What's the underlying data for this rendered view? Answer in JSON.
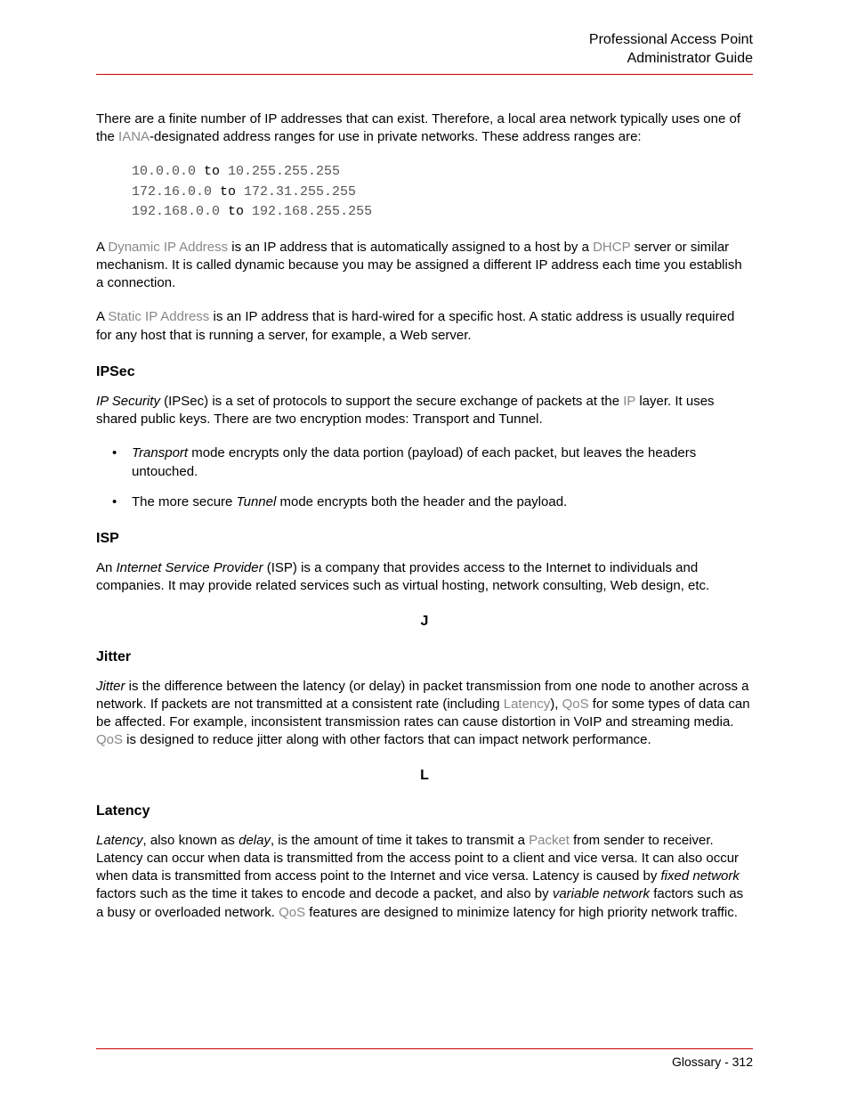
{
  "header": {
    "line1": "Professional Access Point",
    "line2": "Administrator Guide"
  },
  "intro": {
    "t1": "There are a finite number of IP addresses that can exist. Therefore, a local area network typically uses one of the ",
    "link1": "IANA",
    "t2": "-designated address ranges for use in private networks. These address ranges are:"
  },
  "ranges": {
    "r1a": "10.0.0.0",
    "r1m": " to ",
    "r1b": "10.255.255.255",
    "r2a": "172.16.0.0",
    "r2m": " to ",
    "r2b": "172.31.255.255",
    "r3a": "192.168.0.0",
    "r3m": " to ",
    "r3b": "192.168.255.255"
  },
  "dyn": {
    "t1": "A ",
    "link1": "Dynamic IP Address",
    "t2": " is an IP address that is automatically assigned to a host by a ",
    "link2": "DHCP",
    "t3": " server or similar mechanism. It is called dynamic because you may be assigned a different IP address each time you establish a connection."
  },
  "stat": {
    "t1": "A ",
    "link1": "Static IP Address",
    "t2": " is an IP address that is hard-wired for a specific host. A static address is usually required for any host that is running a server, for example, a Web server."
  },
  "ipsec": {
    "heading": "IPSec",
    "p_i1": "IP Security",
    "p_t1": " (IPSec) is a set of protocols to support the secure exchange of packets at the ",
    "p_link1": "IP",
    "p_t2": " layer. It uses shared public keys. There are two encryption modes: Transport and Tunnel.",
    "b1_i": "Transport",
    "b1_t": " mode encrypts only the data portion (payload) of each packet, but leaves the headers untouched.",
    "b2_t1": "The more secure ",
    "b2_i": "Tunnel",
    "b2_t2": " mode encrypts both the header and the payload."
  },
  "isp": {
    "heading": "ISP",
    "p_t1": "An ",
    "p_i1": "Internet Service Provider",
    "p_t2": " (ISP) is a company that provides access to the Internet to individuals and companies. It may provide related services such as virtual hosting, network consulting, Web design, etc."
  },
  "letterJ": "J",
  "jitter": {
    "heading": "Jitter",
    "p_i1": "Jitter",
    "p_t1": " is the difference between the latency (or delay) in packet transmission from one node to another across a network. If packets are not transmitted at a consistent rate (including ",
    "p_link1": "Latency",
    "p_t2": "), ",
    "p_link2": "QoS",
    "p_t3": " for some types of data can be affected. For example, inconsistent transmission rates can cause distortion in VoIP and streaming media. ",
    "p_link3": "QoS",
    "p_t4": " is designed to reduce jitter along with other factors that can impact network performance."
  },
  "letterL": "L",
  "latency": {
    "heading": "Latency",
    "p_i1": "Latency",
    "p_t1": ", also known as ",
    "p_i2": "delay",
    "p_t2": ", is the amount of time it takes to transmit a ",
    "p_link1": "Packet",
    "p_t3": " from sender to receiver. Latency can occur when data is transmitted from the access point to a client and vice versa. It can also occur when data is transmitted from access point to the Internet and vice versa. Latency is caused by ",
    "p_i3": "fixed network",
    "p_t4": " factors such as the time it takes to encode and decode a packet, and also by ",
    "p_i4": "variable network",
    "p_t5": " factors such as a busy or overloaded network. ",
    "p_link2": "QoS",
    "p_t6": " features are designed to minimize latency for high priority network traffic."
  },
  "footer": {
    "t1": "Glossary - 312"
  }
}
